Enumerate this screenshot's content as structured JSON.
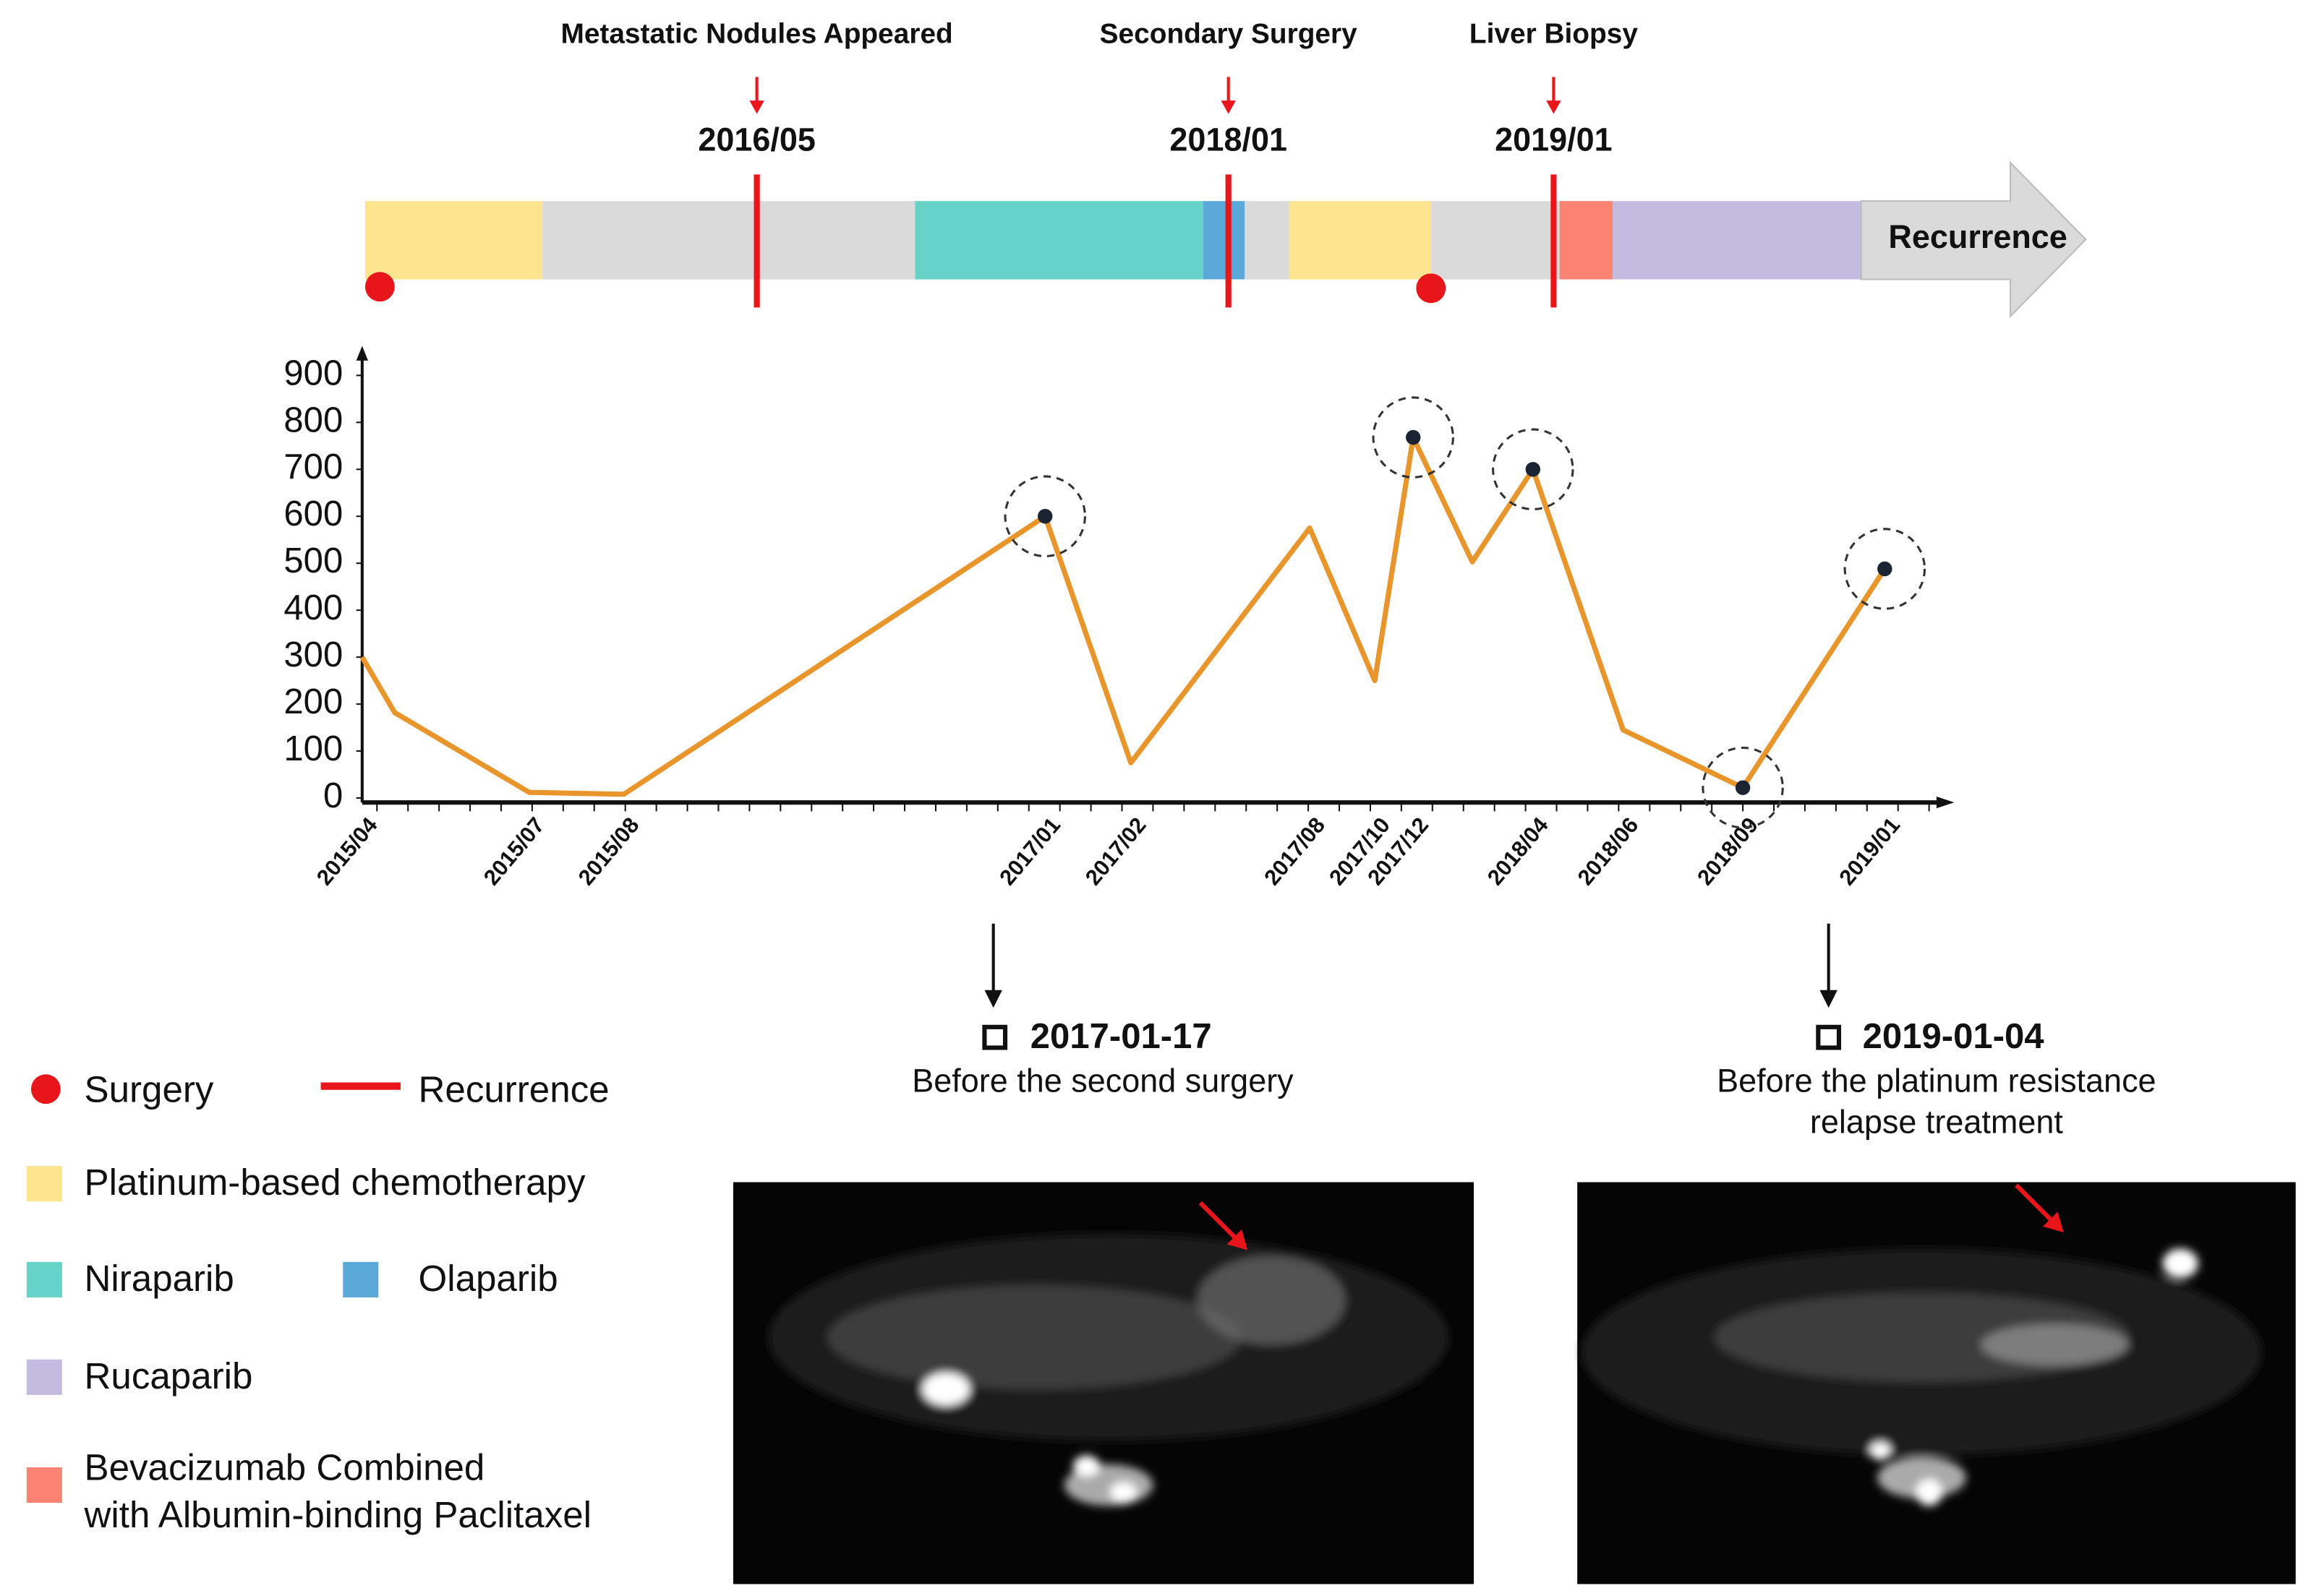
{
  "timeline": {
    "events": [
      {
        "label": "Metastatic Nodules Appeared",
        "date": "2016/05"
      },
      {
        "label": "Secondary Surgery",
        "date": "2018/01"
      },
      {
        "label": "Liver  Biopsy",
        "date": "2019/01"
      }
    ],
    "end_label": "Recurrence"
  },
  "chart_data": {
    "type": "line",
    "categories": [
      "2015/04",
      null,
      "2015/07",
      "2015/08",
      "2017/01",
      "2017/02",
      "2017/08",
      "2017/10",
      "2017/12",
      null,
      "2018/04",
      "2018/06",
      "2018/09",
      "2019/01"
    ],
    "series": [
      {
        "color": "#e8952c",
        "values": [
          300,
          182,
          12,
          8,
          600,
          75,
          575,
          250,
          768,
          503,
          700,
          145,
          22,
          488
        ]
      }
    ],
    "ylim": [
      0,
      900
    ],
    "yticks": [
      0,
      100,
      200,
      300,
      400,
      500,
      600,
      700,
      800,
      900
    ]
  },
  "legend": [
    {
      "label": [
        "Surgery"
      ]
    },
    {
      "label": [
        "Recurrence"
      ]
    },
    {
      "label": [
        "Platinum-based chemotherapy"
      ]
    },
    {
      "label": [
        "Niraparib"
      ]
    },
    {
      "label": [
        "Olaparib"
      ]
    },
    {
      "label": [
        "Rucaparib"
      ]
    },
    {
      "label": [
        "Bevacizumab Combined",
        "with Albumin-binding Paclitaxel"
      ]
    }
  ],
  "scans": [
    {
      "date": "2017-01-17",
      "caption": [
        "Before the second surgery"
      ]
    },
    {
      "date": "2019-01-04",
      "caption": [
        "Before the platinum resistance",
        "relapse treatment"
      ]
    }
  ]
}
